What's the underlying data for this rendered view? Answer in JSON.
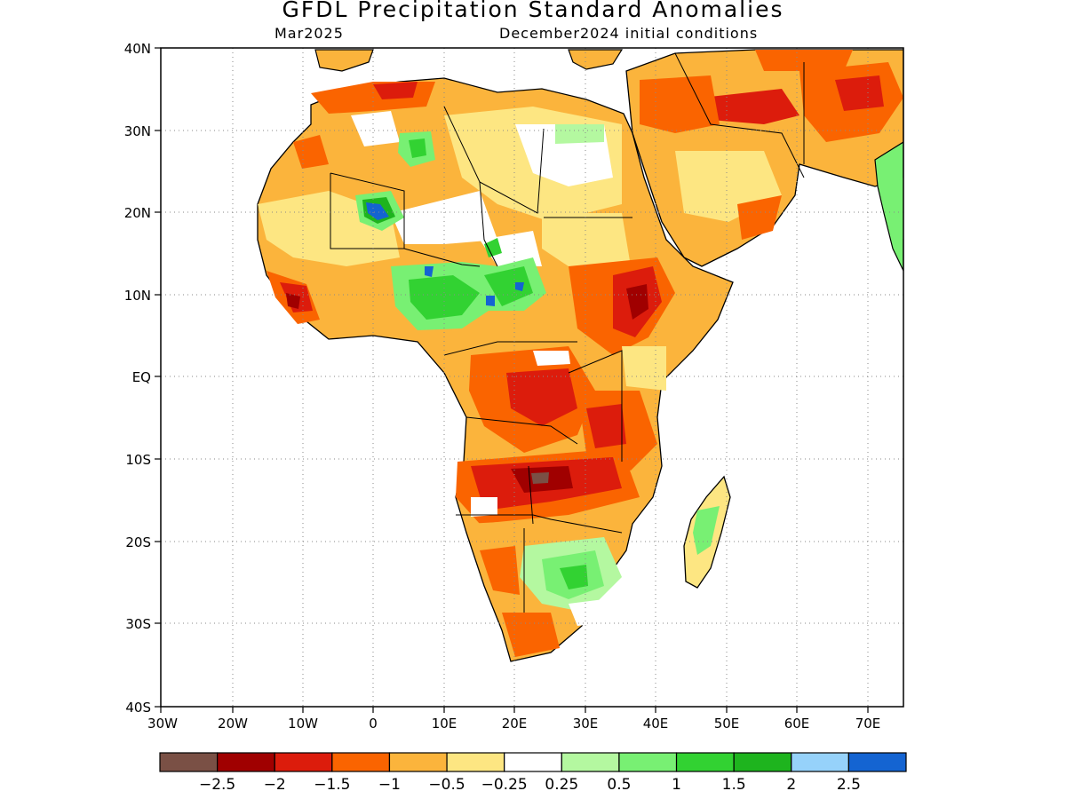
{
  "title": "GFDL Precipitation Standard Anomalies",
  "valid_month": "Mar2025",
  "init_conditions": "December2024 initial conditions",
  "lat_labels": [
    "40N",
    "30N",
    "20N",
    "10N",
    "EQ",
    "10S",
    "20S",
    "30S",
    "40S"
  ],
  "lon_labels": [
    "30W",
    "20W",
    "10W",
    "0",
    "10E",
    "20E",
    "30E",
    "40E",
    "50E",
    "60E",
    "70E"
  ],
  "colorbar": {
    "colors": [
      "#7a5045",
      "#a00000",
      "#dc1c0c",
      "#fa6400",
      "#fbb43c",
      "#fde682",
      "#ffffff",
      "#b4f8a0",
      "#78f073",
      "#32d232",
      "#1eb41e",
      "#96d2fa",
      "#1464d2"
    ],
    "labels": [
      "-2.5",
      "-2",
      "-1.5",
      "-1",
      "-0.5",
      "-0.25",
      "0.25",
      "0.5",
      "1",
      "1.5",
      "2",
      "2.5"
    ]
  },
  "map_data": {
    "region": "Africa and Arabian Peninsula",
    "lon_range": [
      -30,
      75
    ],
    "lat_range": [
      -40,
      40
    ],
    "gridlines": "dotted",
    "variable": "Precipitation standard anomaly",
    "features": [
      {
        "area": "Nile basin / Egypt",
        "category": "-0.5 to -0.25"
      },
      {
        "area": "Northwest Africa (Morocco, Algeria)",
        "category": "-1 to -0.5"
      },
      {
        "area": "Arabian Peninsula and Middle East",
        "category": "-1.5 to -0.5"
      },
      {
        "area": "Ethiopian highlands",
        "category": "-2 to -1"
      },
      {
        "area": "Western Sahara / Mali central",
        "category": "1 to 2.5"
      },
      {
        "area": "Nigeria / Cameroon / Chad south",
        "category": "0.5 to 2.5"
      },
      {
        "area": "Congo basin / DRC",
        "category": "-1.5 to -0.5"
      },
      {
        "area": "Zambia / Angola east",
        "category": "-2.5 to -1"
      },
      {
        "area": "Zimbabwe / Mozambique south",
        "category": "0.25 to 1.5"
      },
      {
        "area": "Madagascar",
        "category": "0.25 to 1"
      },
      {
        "area": "South Africa / Namibia",
        "category": "-1 to -0.25"
      },
      {
        "area": "Guinea / Sierra Leone coast",
        "category": "-2 to -1"
      }
    ]
  }
}
